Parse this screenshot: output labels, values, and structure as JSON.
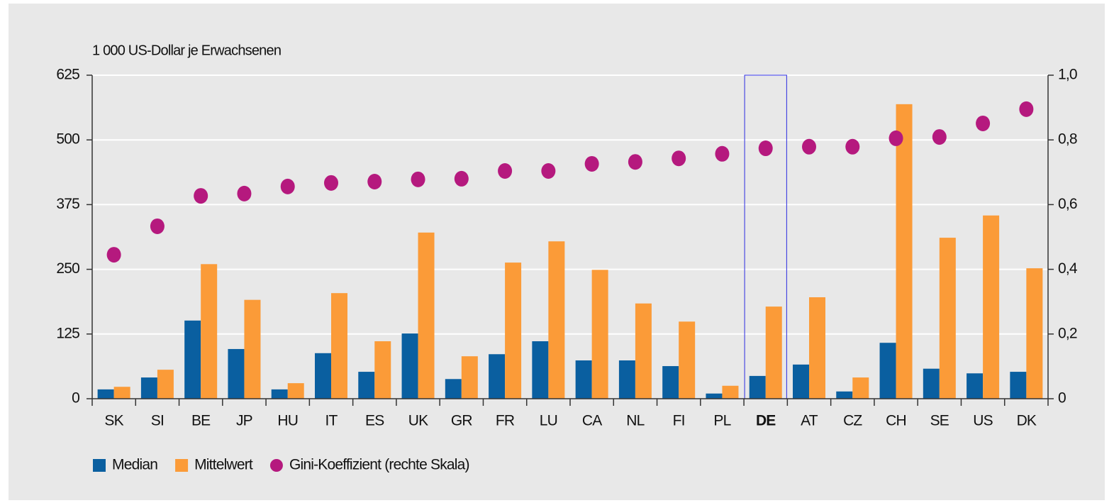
{
  "chart_data": {
    "type": "bar",
    "y_label": "1 000 US-Dollar je Erwachsenen",
    "categories": [
      "SK",
      "SI",
      "BE",
      "JP",
      "HU",
      "IT",
      "ES",
      "UK",
      "GR",
      "FR",
      "LU",
      "CA",
      "NL",
      "FI",
      "PL",
      "DE",
      "AT",
      "CZ",
      "CH",
      "SE",
      "US",
      "DK"
    ],
    "highlight": "DE",
    "series": [
      {
        "name": "Median",
        "color": "#0a5fa0",
        "values": [
          18,
          41,
          151,
          96,
          18,
          88,
          52,
          126,
          38,
          86,
          111,
          74,
          74,
          63,
          10,
          44,
          66,
          14,
          108,
          58,
          49,
          52
        ]
      },
      {
        "name": "Mittelwert",
        "color": "#fb9b38",
        "values": [
          23,
          56,
          260,
          191,
          30,
          204,
          111,
          321,
          82,
          263,
          304,
          249,
          184,
          149,
          25,
          178,
          196,
          41,
          569,
          311,
          354,
          252
        ]
      },
      {
        "name": "Gini-Koeffizient (rechte Skala)",
        "type": "scatter",
        "axis": "y2",
        "color": "#b5197e",
        "values": [
          0.445,
          0.533,
          0.627,
          0.634,
          0.656,
          0.667,
          0.671,
          0.678,
          0.68,
          0.704,
          0.704,
          0.726,
          0.732,
          0.743,
          0.757,
          0.774,
          0.779,
          0.779,
          0.805,
          0.809,
          0.851,
          0.895
        ]
      }
    ],
    "ylim": [
      0,
      625
    ],
    "yticks": [
      0,
      125,
      250,
      375,
      500,
      625
    ],
    "y2lim": [
      0,
      1
    ],
    "y2ticks": [
      0,
      {
        "value": 0.2,
        "label": "0,2"
      },
      {
        "value": 0.4,
        "label": "0,4"
      },
      {
        "value": 0.6,
        "label": "0,6"
      },
      {
        "value": 0.8,
        "label": "0,8"
      },
      {
        "value": 1,
        "label": "1,0"
      }
    ],
    "grid": true,
    "legend": "bottom-left"
  }
}
